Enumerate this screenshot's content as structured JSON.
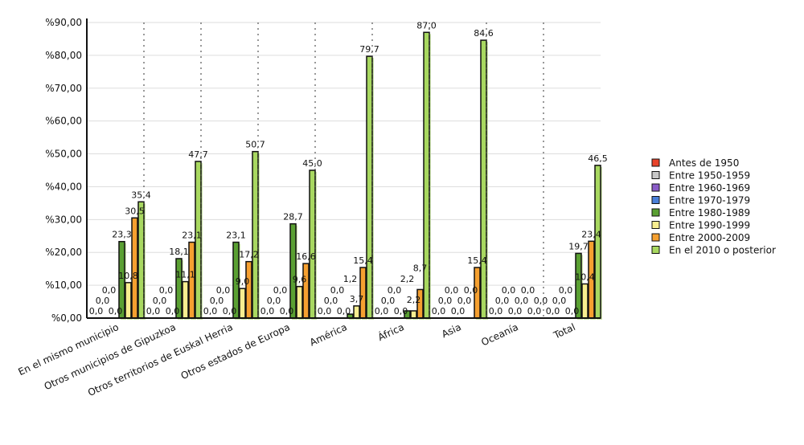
{
  "chart_data": {
    "type": "bar",
    "title": "",
    "xlabel": "",
    "ylabel": "",
    "ylim": [
      0,
      90
    ],
    "yticks": [
      "%0,00",
      "%10,00",
      "%20,00",
      "%30,00",
      "%40,00",
      "%50,00",
      "%60,00",
      "%70,00",
      "%80,00",
      "%90,00"
    ],
    "categories": [
      "En el mismo municipio",
      "Otros municipios de Gipuzkoa",
      "Otros territorios de Euskal Herria",
      "Otros estados de Europa",
      "América",
      "África",
      "Asia",
      "Oceanía",
      "Total"
    ],
    "series": [
      {
        "name": "Antes de 1950",
        "color": "#e8432a",
        "values": [
          0,
          0,
          0,
          0,
          0,
          0,
          0,
          0,
          0
        ]
      },
      {
        "name": "Entre 1950-1959",
        "color": "#c8c8c8",
        "values": [
          0,
          0,
          0,
          0,
          0,
          0,
          0,
          0,
          0
        ]
      },
      {
        "name": "Entre 1960-1969",
        "color": "#8a5cc8",
        "values": [
          0,
          0,
          0,
          0,
          0,
          0,
          0,
          0,
          0
        ]
      },
      {
        "name": "Entre 1970-1979",
        "color": "#4a7fd8",
        "values": [
          0,
          0,
          0,
          0,
          0,
          0,
          0,
          0,
          0
        ]
      },
      {
        "name": "Entre 1980-1989",
        "color": "#5aa032",
        "values": [
          23.3,
          18.1,
          23.1,
          28.7,
          1.2,
          2.2,
          0,
          0,
          19.7
        ]
      },
      {
        "name": "Entre 1990-1999",
        "color": "#f8ee90",
        "values": [
          10.8,
          11.1,
          9.0,
          9.6,
          3.7,
          2.2,
          0,
          0,
          10.4
        ]
      },
      {
        "name": "Entre 2000-2009",
        "color": "#f5a030",
        "values": [
          30.5,
          23.1,
          17.2,
          16.6,
          15.4,
          8.7,
          15.4,
          0,
          23.4
        ]
      },
      {
        "name": "En el 2010 o posterior",
        "color": "#a8d860",
        "values": [
          35.4,
          47.7,
          50.7,
          45.0,
          79.7,
          87.0,
          84.6,
          0,
          46.5
        ]
      }
    ],
    "legend_position": "right",
    "grid": true
  }
}
